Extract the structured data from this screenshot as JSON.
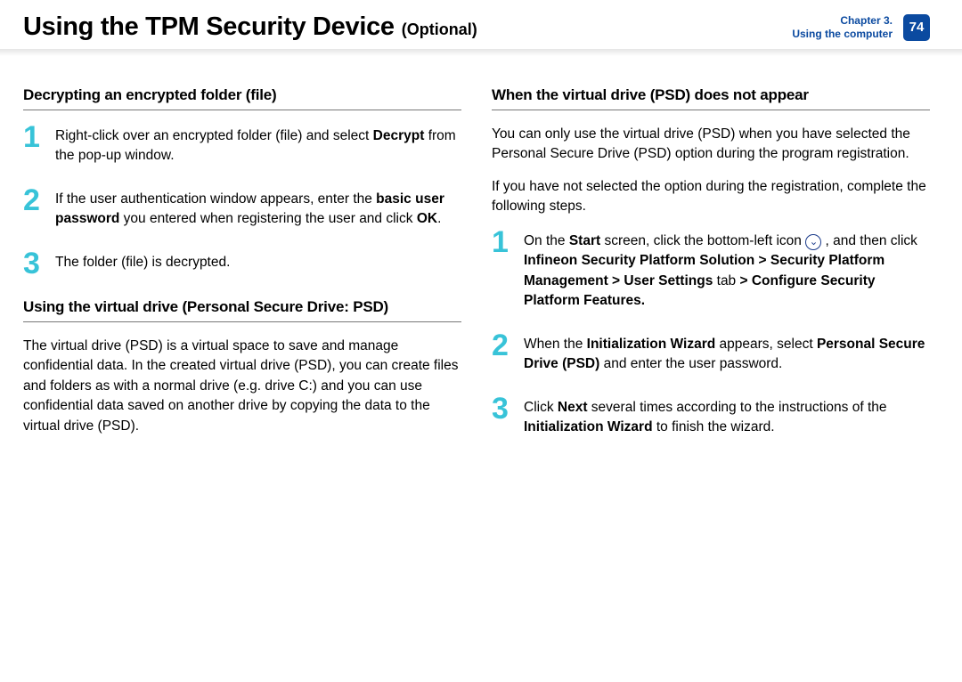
{
  "colors": {
    "accent": "#38c3d8",
    "chapter_text": "#0b4aa0",
    "badge_bg": "#0b4aa0",
    "icon_fill": "#1a3a8a"
  },
  "header": {
    "title": "Using the TPM Security Device",
    "optional": "(Optional)",
    "chapter_line1": "Chapter 3.",
    "chapter_line2": "Using the computer",
    "page_number": "74"
  },
  "left": {
    "section1_title": "Decrypting an encrypted folder (file)",
    "steps1": [
      {
        "n": "1",
        "html": "Right-click over an encrypted folder (file) and select <b>Decrypt</b> from the pop-up window."
      },
      {
        "n": "2",
        "html": "If the user authentication window appears, enter the <b>basic user password</b> you entered when registering the user and click <b>OK</b>."
      },
      {
        "n": "3",
        "html": "The folder (file) is decrypted."
      }
    ],
    "section2_title": "Using the virtual drive (Personal Secure Drive: PSD)",
    "section2_para": "The virtual drive (PSD) is a virtual space to save and manage confidential data. In the created virtual drive (PSD), you can create files and folders as with a normal drive (e.g. drive C:) and you can use confidential data saved on another drive by copying the data to the virtual drive (PSD)."
  },
  "right": {
    "section1_title": "When the virtual drive (PSD) does not appear",
    "para1": "You can only use the virtual drive (PSD) when you have selected the Personal Secure Drive (PSD) option during the program registration.",
    "para2": " If you have not selected the option during the registration, complete the following steps.",
    "steps": [
      {
        "n": "1",
        "html": "On the <b>Start</b> screen, click the bottom-left icon {{ICON}} , and then click <b>Infineon Security Platform Solution > Security Platform Management > User Settings</b> tab <b> > Configure Security Platform Features.</b>"
      },
      {
        "n": "2",
        "html": "When the <b>Initialization Wizard</b> appears, select <b>Personal Secure Drive (PSD)</b> and enter the user password."
      },
      {
        "n": "3",
        "html": "Click <b>Next</b> several times according to the instructions of the <b>Initialization Wizard</b> to finish the wizard."
      }
    ]
  }
}
